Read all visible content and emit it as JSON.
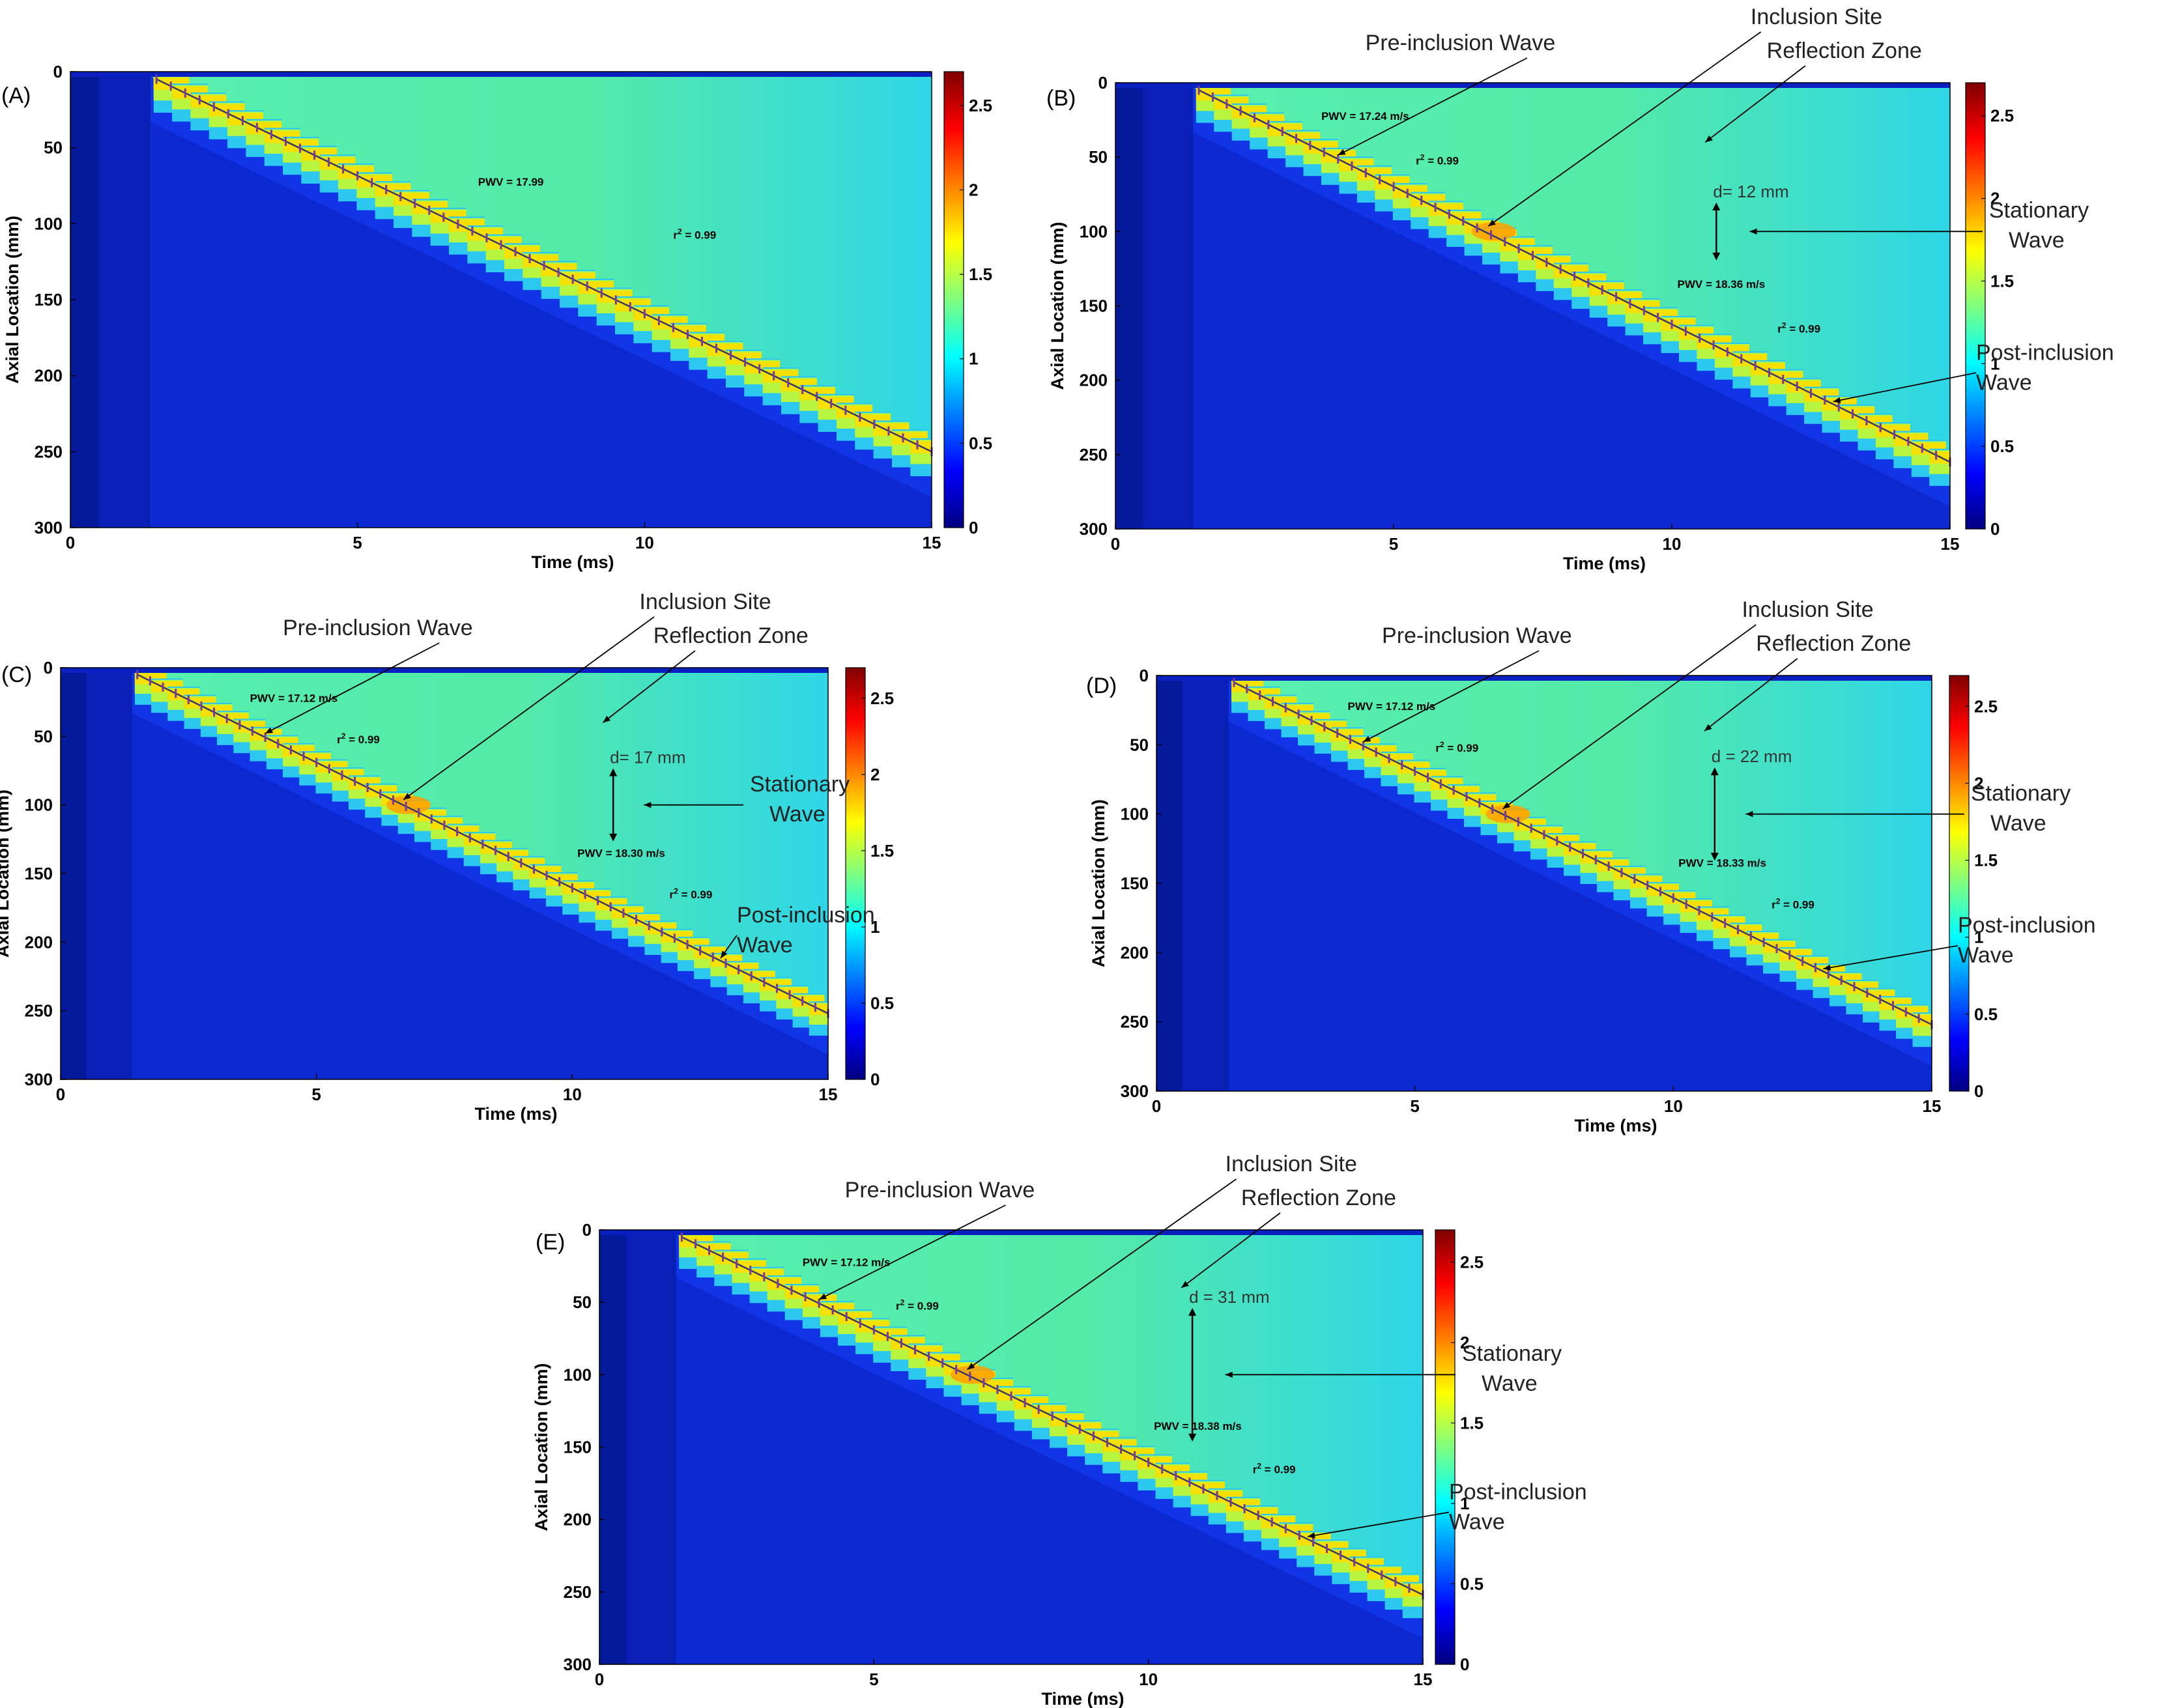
{
  "figure": {
    "colors": {
      "colormap": [
        "#00007f",
        "#0000ff",
        "#007fff",
        "#00ffff",
        "#7fff7f",
        "#ffff00",
        "#ff7f00",
        "#ff0000",
        "#7f0000"
      ],
      "background_low": "#0a2bd0",
      "background_high": "#48e8a0",
      "fit_line": "#3a3a6a",
      "markers": "#7a3a9a"
    },
    "panels": [
      {
        "label": "(A)",
        "pwv_pre": "PWV = 17.99",
        "r2_pre": "0.99",
        "pwv_post": "",
        "r2_post": "",
        "d_label": "",
        "annotations": {}
      },
      {
        "label": "(B)",
        "pwv_pre": "PWV = 17.24 m/s",
        "r2_pre": "0.99",
        "pwv_post": "PWV = 18.36 m/s",
        "r2_post": "0.99",
        "d_label": "d= 12 mm",
        "annotations": {
          "pre_inclusion": "Pre-inclusion Wave",
          "inclusion_site": "Inclusion Site",
          "reflection_zone": "Reflection Zone",
          "stationary_line1": "Stationary",
          "stationary_line2": "Wave",
          "post_line1": "Post-inclusion",
          "post_line2": "Wave"
        }
      },
      {
        "label": "(C)",
        "pwv_pre": "PWV = 17.12 m/s",
        "r2_pre": "0.99",
        "pwv_post": "PWV = 18.30 m/s",
        "r2_post": "0.99",
        "d_label": "d= 17 mm",
        "annotations": {
          "pre_inclusion": "Pre-inclusion Wave",
          "inclusion_site": "Inclusion Site",
          "reflection_zone": "Reflection Zone",
          "stationary_line1": "Stationary",
          "stationary_line2": "Wave",
          "post_line1": "Post-inclusion",
          "post_line2": "Wave"
        }
      },
      {
        "label": "(D)",
        "pwv_pre": "PWV = 17.12 m/s",
        "r2_pre": "0.99",
        "pwv_post": "PWV = 18.33 m/s",
        "r2_post": "0.99",
        "d_label": "d = 22 mm",
        "annotations": {
          "pre_inclusion": "Pre-inclusion Wave",
          "inclusion_site": "Inclusion Site",
          "reflection_zone": "Reflection Zone",
          "stationary_line1": "Stationary",
          "stationary_line2": "Wave",
          "post_line1": "Post-inclusion",
          "post_line2": "Wave"
        }
      },
      {
        "label": "(E)",
        "pwv_pre": "PWV = 17.12 m/s",
        "r2_pre": "0.99",
        "pwv_post": "PWV = 18.38 m/s",
        "r2_post": "0.99",
        "d_label": "d = 31 mm",
        "annotations": {
          "pre_inclusion": "Pre-inclusion Wave",
          "inclusion_site": "Inclusion Site",
          "reflection_zone": "Reflection Zone",
          "stationary_line1": "Stationary",
          "stationary_line2": "Wave",
          "post_line1": "Post-inclusion",
          "post_line2": "Wave"
        }
      }
    ]
  },
  "chart_data": [
    {
      "type": "heatmap",
      "panel": "(A)",
      "xlabel": "Time (ms)",
      "ylabel": "Axial Location (mm)",
      "xlim": [
        0,
        15
      ],
      "ylim": [
        300,
        0
      ],
      "xticks": [
        0,
        5,
        10,
        15
      ],
      "yticks": [
        0,
        50,
        100,
        150,
        200,
        250,
        300
      ],
      "colorbar": {
        "range": [
          0,
          2.7
        ],
        "ticks": [
          0,
          0.5,
          1,
          1.5,
          2,
          2.5
        ]
      },
      "wavefront_fit": {
        "x": [
          1.5,
          15
        ],
        "y": [
          5,
          250
        ]
      }
    },
    {
      "type": "heatmap",
      "panel": "(B)",
      "xlabel": "Time (ms)",
      "ylabel": "Axial Location (mm)",
      "xlim": [
        0,
        15
      ],
      "ylim": [
        300,
        0
      ],
      "xticks": [
        0,
        5,
        10,
        15
      ],
      "yticks": [
        0,
        50,
        100,
        150,
        200,
        250,
        300
      ],
      "colorbar": {
        "range": [
          0,
          2.7
        ],
        "ticks": [
          0,
          0.5,
          1,
          1.5,
          2,
          2.5
        ]
      },
      "wavefront_fit": {
        "x": [
          1.5,
          15
        ],
        "y": [
          5,
          255
        ]
      },
      "inclusion": {
        "time_ms": 6.8,
        "axial_mm": 100
      },
      "stationary_wave_width_mm": 12
    },
    {
      "type": "heatmap",
      "panel": "(C)",
      "xlabel": "Time (ms)",
      "ylabel": "Axial Location (mm)",
      "xlim": [
        0,
        15
      ],
      "ylim": [
        300,
        0
      ],
      "xticks": [
        0,
        5,
        10,
        15
      ],
      "yticks": [
        0,
        50,
        100,
        150,
        200,
        250,
        300
      ],
      "colorbar": {
        "range": [
          0,
          2.7
        ],
        "ticks": [
          0,
          0.5,
          1,
          1.5,
          2,
          2.5
        ]
      },
      "wavefront_fit": {
        "x": [
          1.5,
          15
        ],
        "y": [
          5,
          252
        ]
      },
      "inclusion": {
        "time_ms": 6.8,
        "axial_mm": 100
      },
      "stationary_wave_width_mm": 17
    },
    {
      "type": "heatmap",
      "panel": "(D)",
      "xlabel": "Time (ms)",
      "ylabel": "Axial Location (mm)",
      "xlim": [
        0,
        15
      ],
      "ylim": [
        300,
        0
      ],
      "xticks": [
        0,
        5,
        10,
        15
      ],
      "yticks": [
        0,
        50,
        100,
        150,
        200,
        250,
        300
      ],
      "colorbar": {
        "range": [
          0,
          2.7
        ],
        "ticks": [
          0,
          0.5,
          1,
          1.5,
          2,
          2.5
        ]
      },
      "wavefront_fit": {
        "x": [
          1.5,
          15
        ],
        "y": [
          5,
          252
        ]
      },
      "inclusion": {
        "time_ms": 6.8,
        "axial_mm": 100
      },
      "stationary_wave_width_mm": 22
    },
    {
      "type": "heatmap",
      "panel": "(E)",
      "xlabel": "Time (ms)",
      "ylabel": "Axial Location (mm)",
      "xlim": [
        0,
        15
      ],
      "ylim": [
        300,
        0
      ],
      "xticks": [
        0,
        5,
        10,
        15
      ],
      "yticks": [
        0,
        50,
        100,
        150,
        200,
        250,
        300
      ],
      "colorbar": {
        "range": [
          0,
          2.7
        ],
        "ticks": [
          0,
          0.5,
          1,
          1.5,
          2,
          2.5
        ]
      },
      "wavefront_fit": {
        "x": [
          1.5,
          15
        ],
        "y": [
          5,
          252
        ]
      },
      "inclusion": {
        "time_ms": 6.8,
        "axial_mm": 100
      },
      "stationary_wave_width_mm": 31
    }
  ]
}
